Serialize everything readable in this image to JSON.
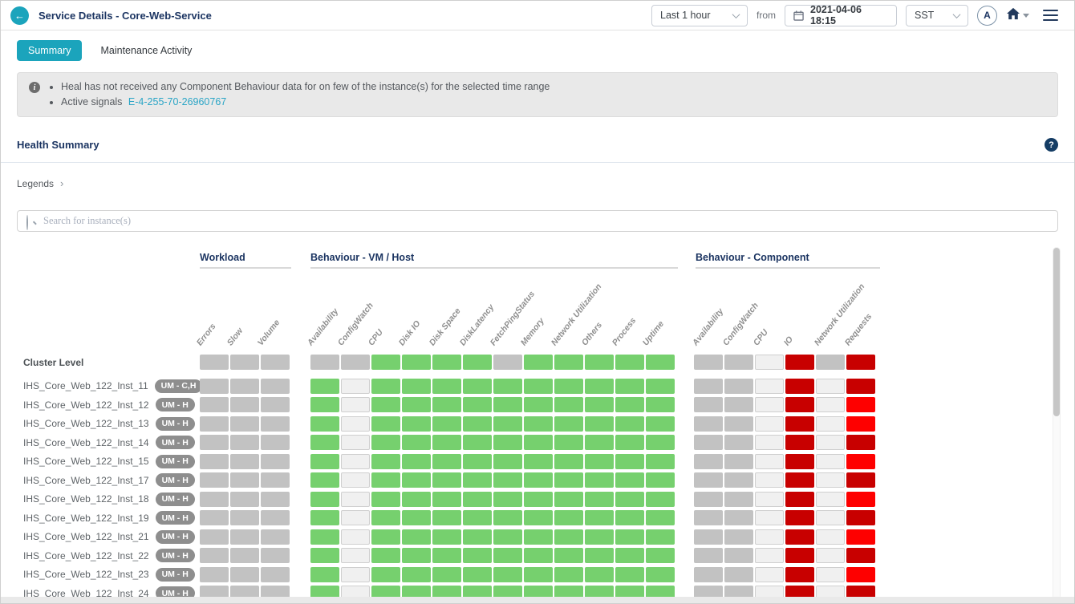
{
  "header": {
    "title": "Service Details - Core-Web-Service",
    "time_range": "Last 1 hour",
    "from_label": "from",
    "datetime": "2021-04-06 18:15",
    "timezone": "SST",
    "avatar_initial": "A"
  },
  "tabs": [
    {
      "label": "Summary",
      "active": true
    },
    {
      "label": "Maintenance Activity",
      "active": false
    }
  ],
  "banner": {
    "message_1": "Heal has not received any Component Behaviour data for on few of the instance(s) for the selected time range",
    "message_2": "Active signals",
    "link": "E-4-255-70-26960767"
  },
  "section": {
    "title": "Health Summary",
    "legends_label": "Legends",
    "legends_chevron": "›"
  },
  "search": {
    "placeholder": "Search for instance(s)"
  },
  "colors": {
    "accent_teal": "#1ba4bc",
    "navy": "#1c3562",
    "link": "#2aa5c6",
    "state_na": "#c2c2c2",
    "state_good": "#76d06e",
    "state_empty": "#f0f0f0",
    "state_critical": "#c80000",
    "state_severe": "#fe0000"
  },
  "matrix": {
    "groups": [
      {
        "label": "Workload",
        "columns": [
          "Errors",
          "Slow",
          "Volume"
        ]
      },
      {
        "label": "Behaviour - VM / Host",
        "columns": [
          "Availability",
          "ConfigWatch",
          "CPU",
          "Disk IO",
          "Disk Space",
          "DiskLatency",
          "FetchPingStatus",
          "Memory",
          "Network Utilization",
          "Others",
          "Process",
          "Uptime"
        ]
      },
      {
        "label": "Behaviour - Component",
        "columns": [
          "Availability",
          "ConfigWatch",
          "CPU",
          "IO",
          "Network Utilization",
          "Requests"
        ]
      }
    ],
    "rows": [
      {
        "label": "Cluster Level",
        "badge": null,
        "cluster": true,
        "cells": [
          [
            "na",
            "na",
            "na"
          ],
          [
            "na",
            "na",
            "good",
            "good",
            "good",
            "good",
            "na",
            "good",
            "good",
            "good",
            "good",
            "good"
          ],
          [
            "na",
            "na",
            "empty",
            "critical",
            "na",
            "critical"
          ]
        ]
      },
      {
        "label": "IHS_Core_Web_122_Inst_11",
        "badge": "UM - C,H",
        "cells": [
          [
            "na",
            "na",
            "na"
          ],
          [
            "good",
            "empty",
            "good",
            "good",
            "good",
            "good",
            "good",
            "good",
            "good",
            "good",
            "good",
            "good"
          ],
          [
            "na",
            "na",
            "empty",
            "critical",
            "empty",
            "critical"
          ]
        ]
      },
      {
        "label": "IHS_Core_Web_122_Inst_12",
        "badge": "UM - H",
        "cells": [
          [
            "na",
            "na",
            "na"
          ],
          [
            "good",
            "empty",
            "good",
            "good",
            "good",
            "good",
            "good",
            "good",
            "good",
            "good",
            "good",
            "good"
          ],
          [
            "na",
            "na",
            "empty",
            "critical",
            "empty",
            "severe"
          ]
        ]
      },
      {
        "label": "IHS_Core_Web_122_Inst_13",
        "badge": "UM - H",
        "cells": [
          [
            "na",
            "na",
            "na"
          ],
          [
            "good",
            "empty",
            "good",
            "good",
            "good",
            "good",
            "good",
            "good",
            "good",
            "good",
            "good",
            "good"
          ],
          [
            "na",
            "na",
            "empty",
            "critical",
            "empty",
            "severe"
          ]
        ]
      },
      {
        "label": "IHS_Core_Web_122_Inst_14",
        "badge": "UM - H",
        "cells": [
          [
            "na",
            "na",
            "na"
          ],
          [
            "good",
            "empty",
            "good",
            "good",
            "good",
            "good",
            "good",
            "good",
            "good",
            "good",
            "good",
            "good"
          ],
          [
            "na",
            "na",
            "empty",
            "critical",
            "empty",
            "critical"
          ]
        ]
      },
      {
        "label": "IHS_Core_Web_122_Inst_15",
        "badge": "UM - H",
        "cells": [
          [
            "na",
            "na",
            "na"
          ],
          [
            "good",
            "empty",
            "good",
            "good",
            "good",
            "good",
            "good",
            "good",
            "good",
            "good",
            "good",
            "good"
          ],
          [
            "na",
            "na",
            "empty",
            "critical",
            "empty",
            "severe"
          ]
        ]
      },
      {
        "label": "IHS_Core_Web_122_Inst_17",
        "badge": "UM - H",
        "cells": [
          [
            "na",
            "na",
            "na"
          ],
          [
            "good",
            "empty",
            "good",
            "good",
            "good",
            "good",
            "good",
            "good",
            "good",
            "good",
            "good",
            "good"
          ],
          [
            "na",
            "na",
            "empty",
            "critical",
            "empty",
            "critical"
          ]
        ]
      },
      {
        "label": "IHS_Core_Web_122_Inst_18",
        "badge": "UM - H",
        "cells": [
          [
            "na",
            "na",
            "na"
          ],
          [
            "good",
            "empty",
            "good",
            "good",
            "good",
            "good",
            "good",
            "good",
            "good",
            "good",
            "good",
            "good"
          ],
          [
            "na",
            "na",
            "empty",
            "critical",
            "empty",
            "severe"
          ]
        ]
      },
      {
        "label": "IHS_Core_Web_122_Inst_19",
        "badge": "UM - H",
        "cells": [
          [
            "na",
            "na",
            "na"
          ],
          [
            "good",
            "empty",
            "good",
            "good",
            "good",
            "good",
            "good",
            "good",
            "good",
            "good",
            "good",
            "good"
          ],
          [
            "na",
            "na",
            "empty",
            "critical",
            "empty",
            "critical"
          ]
        ]
      },
      {
        "label": "IHS_Core_Web_122_Inst_21",
        "badge": "UM - H",
        "cells": [
          [
            "na",
            "na",
            "na"
          ],
          [
            "good",
            "empty",
            "good",
            "good",
            "good",
            "good",
            "good",
            "good",
            "good",
            "good",
            "good",
            "good"
          ],
          [
            "na",
            "na",
            "empty",
            "critical",
            "empty",
            "severe"
          ]
        ]
      },
      {
        "label": "IHS_Core_Web_122_Inst_22",
        "badge": "UM - H",
        "cells": [
          [
            "na",
            "na",
            "na"
          ],
          [
            "good",
            "empty",
            "good",
            "good",
            "good",
            "good",
            "good",
            "good",
            "good",
            "good",
            "good",
            "good"
          ],
          [
            "na",
            "na",
            "empty",
            "critical",
            "empty",
            "critical"
          ]
        ]
      },
      {
        "label": "IHS_Core_Web_122_Inst_23",
        "badge": "UM - H",
        "cells": [
          [
            "na",
            "na",
            "na"
          ],
          [
            "good",
            "empty",
            "good",
            "good",
            "good",
            "good",
            "good",
            "good",
            "good",
            "good",
            "good",
            "good"
          ],
          [
            "na",
            "na",
            "empty",
            "critical",
            "empty",
            "severe"
          ]
        ]
      },
      {
        "label": "IHS_Core_Web_122_Inst_24",
        "badge": "UM - H",
        "cells": [
          [
            "na",
            "na",
            "na"
          ],
          [
            "good",
            "empty",
            "good",
            "good",
            "good",
            "good",
            "good",
            "good",
            "good",
            "good",
            "good",
            "good"
          ],
          [
            "na",
            "na",
            "empty",
            "critical",
            "empty",
            "critical"
          ]
        ]
      }
    ]
  }
}
